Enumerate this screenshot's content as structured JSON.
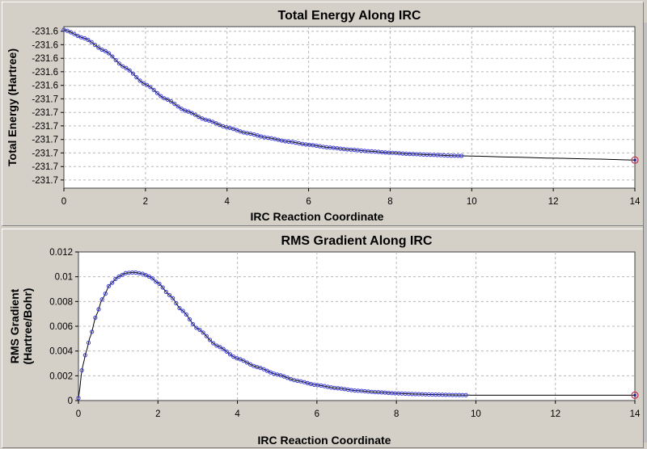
{
  "chart_data": [
    {
      "type": "scatter",
      "title": "Total Energy Along IRC",
      "xlabel": "IRC Reaction Coordinate",
      "ylabel": "Total Energy (Hartree)",
      "xlim": [
        0,
        14
      ],
      "ylim": [
        -231.705,
        -231.628
      ],
      "x_ticks": [
        0,
        2,
        4,
        6,
        8,
        10,
        12,
        14
      ],
      "y_ticks": [
        -231.6302,
        -231.6366,
        -231.6431,
        -231.6495,
        -231.656,
        -231.6624,
        -231.6689,
        -231.6753,
        -231.6818,
        -231.6882,
        -231.6947,
        -231.7011
      ],
      "y_tick_labels": [
        "-231.6",
        "-231.6",
        "-231.6",
        "-231.6",
        "-231.6",
        "-231.7",
        "-231.7",
        "-231.7",
        "-231.7",
        "-231.7",
        "-231.7",
        "-231.7"
      ],
      "grid": true,
      "series": [
        {
          "x": [
            0.0,
            0.5,
            1.0,
            1.5,
            2.0,
            2.5,
            3.0,
            3.5,
            4.0,
            4.5,
            5.0,
            5.5,
            6.0,
            6.5,
            7.0,
            7.5,
            8.0,
            8.5,
            9.0,
            9.5,
            9.75,
            10.0,
            11.0,
            12.0,
            13.0,
            14.0
          ],
          "y": [
            -231.6295,
            -231.6335,
            -231.6395,
            -231.6475,
            -231.6555,
            -231.6625,
            -231.6682,
            -231.6725,
            -231.676,
            -231.6788,
            -231.681,
            -231.6828,
            -231.6843,
            -231.6856,
            -231.6866,
            -231.6874,
            -231.6881,
            -231.6887,
            -231.6891,
            -231.6895,
            -231.6896,
            -231.6897,
            -231.6902,
            -231.6907,
            -231.6911,
            -231.6916
          ]
        }
      ]
    },
    {
      "type": "scatter",
      "title": "RMS Gradient Along IRC",
      "xlabel": "IRC Reaction Coordinate",
      "ylabel": "RMS Gradient (Hartree/Bohr)",
      "ylabel_lines": [
        "RMS Gradient",
        "(Hartree/Bohr)"
      ],
      "xlim": [
        0,
        14
      ],
      "ylim": [
        0,
        0.012
      ],
      "x_ticks": [
        0,
        2,
        4,
        6,
        8,
        10,
        12,
        14
      ],
      "y_ticks": [
        0,
        0.002,
        0.004,
        0.006,
        0.008,
        0.01,
        0.012
      ],
      "y_tick_labels": [
        "0",
        "0.002",
        "0.004",
        "0.006",
        "0.008",
        "0.01",
        "0.012"
      ],
      "grid": true,
      "series": [
        {
          "x": [
            0.0,
            0.1,
            0.2,
            0.3,
            0.45,
            0.6,
            0.8,
            1.0,
            1.2,
            1.4,
            1.6,
            1.8,
            2.0,
            2.3,
            2.6,
            3.0,
            3.5,
            4.0,
            4.5,
            5.0,
            5.5,
            6.0,
            6.5,
            7.0,
            7.5,
            8.0,
            8.5,
            9.0,
            9.5,
            9.75,
            10.0,
            11.0,
            12.0,
            13.0,
            14.0
          ],
          "y": [
            0.0002,
            0.0027,
            0.004,
            0.0052,
            0.0069,
            0.0082,
            0.0094,
            0.01,
            0.0103,
            0.01035,
            0.01025,
            0.01,
            0.0095,
            0.0085,
            0.0073,
            0.0058,
            0.0044,
            0.0034,
            0.0027,
            0.0021,
            0.0016,
            0.00125,
            0.001,
            0.0008,
            0.00068,
            0.00058,
            0.00052,
            0.00048,
            0.00045,
            0.00044,
            0.00043,
            0.00043,
            0.00043,
            0.00043,
            0.00043
          ]
        }
      ]
    }
  ]
}
